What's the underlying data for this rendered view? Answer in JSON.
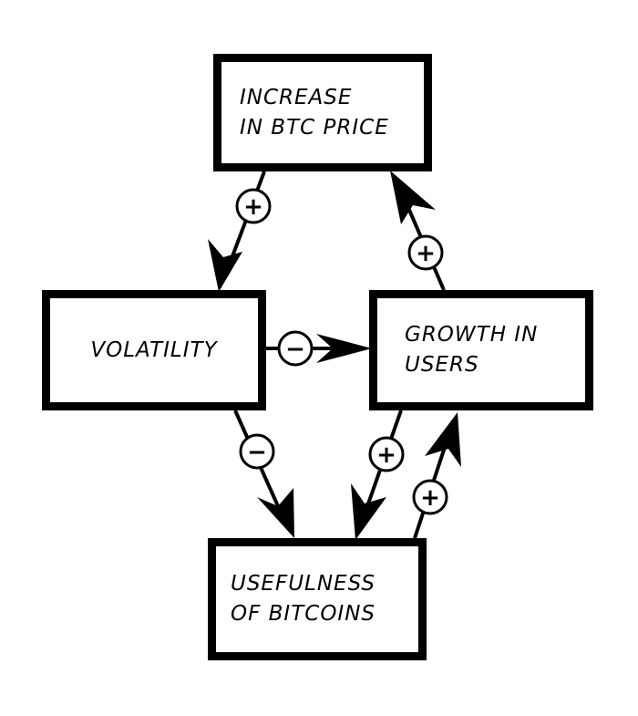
{
  "nodes": {
    "price": "INCREASE\nIN BTC PRICE",
    "volatility": "VOLATILITY",
    "users": "GROWTH IN\nUSERS",
    "usefulness": "USEFULNESS\nOF BITCOINS"
  },
  "links": [
    {
      "id": "price-to-volatility",
      "from": "price",
      "to": "volatility",
      "sign": "+"
    },
    {
      "id": "volatility-to-users",
      "from": "volatility",
      "to": "users",
      "sign": "−"
    },
    {
      "id": "users-to-price",
      "from": "users",
      "to": "price",
      "sign": "+"
    },
    {
      "id": "volatility-to-usefulness",
      "from": "volatility",
      "to": "usefulness",
      "sign": "−"
    },
    {
      "id": "users-to-usefulness",
      "from": "users",
      "to": "usefulness",
      "sign": "+"
    },
    {
      "id": "usefulness-to-users",
      "from": "usefulness",
      "to": "users",
      "sign": "+"
    }
  ]
}
